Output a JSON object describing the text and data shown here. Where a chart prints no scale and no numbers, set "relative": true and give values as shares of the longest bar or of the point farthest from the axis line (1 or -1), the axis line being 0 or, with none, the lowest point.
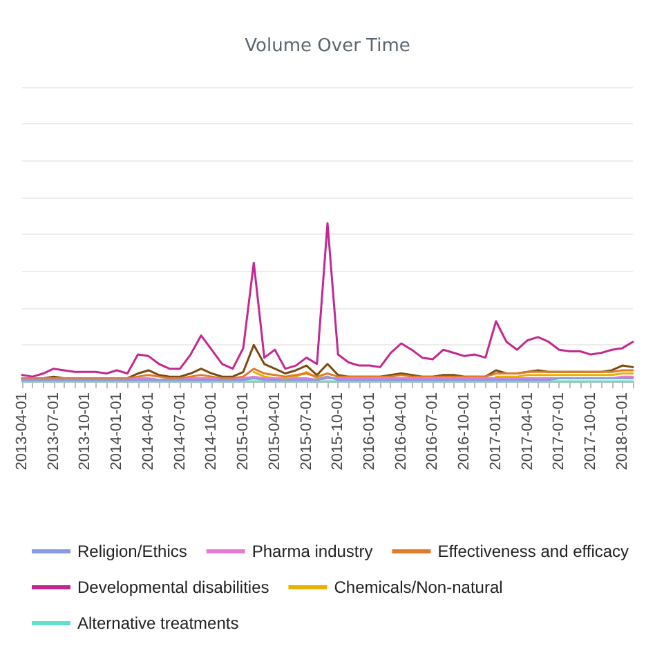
{
  "chart_data": {
    "type": "line",
    "title": "Volume Over Time",
    "relative": true,
    "grid": "y",
    "legend": "bottom",
    "marker": "none",
    "line_style": "solid",
    "categories": [
      "2013-04-01",
      null,
      null,
      "2013-07-01",
      null,
      null,
      "2013-10-01",
      null,
      null,
      "2014-01-01",
      null,
      null,
      "2014-04-01",
      null,
      null,
      "2014-07-01",
      null,
      null,
      "2014-10-01",
      null,
      null,
      "2015-01-01",
      null,
      null,
      "2015-04-01",
      null,
      null,
      "2015-07-01",
      null,
      null,
      "2015-10-01",
      null,
      null,
      "2016-01-01",
      null,
      null,
      "2016-04-01",
      null,
      null,
      "2016-07-01",
      null,
      null,
      "2016-10-01",
      null,
      null,
      "2017-01-01",
      null,
      null,
      "2017-04-01",
      null,
      null,
      "2017-07-01",
      null,
      null,
      "2017-10-01",
      null,
      null,
      "2018-01-01",
      null
    ],
    "series": [
      {
        "name": "Religion/Ethics",
        "color": "#8a9ae0",
        "values": [
          0.01,
          0.01,
          0.01,
          0.01,
          0.01,
          0.01,
          0.01,
          0.01,
          0.01,
          0.01,
          0.01,
          0.01,
          0.01,
          0.01,
          0.01,
          0.01,
          0.01,
          0.01,
          0.01,
          0.01,
          0.01,
          0.01,
          0.02,
          0.01,
          0.01,
          0.01,
          0.01,
          0.01,
          0.01,
          0.03,
          0.01,
          0.01,
          0.01,
          0.01,
          0.01,
          0.01,
          0.01,
          0.01,
          0.01,
          0.01,
          0.01,
          0.01,
          0.01,
          0.01,
          0.01,
          0.01,
          0.01,
          0.01,
          0.01,
          0.01,
          0.01,
          0.02,
          0.02,
          0.02,
          0.02,
          0.02,
          0.02,
          0.02,
          0.02
        ]
      },
      {
        "name": "Pharma industry",
        "color": "#e87ad6",
        "values": [
          0.01,
          0.01,
          0.01,
          0.01,
          0.01,
          0.01,
          0.01,
          0.01,
          0.01,
          0.01,
          0.01,
          0.02,
          0.02,
          0.01,
          0.01,
          0.01,
          0.02,
          0.02,
          0.02,
          0.01,
          0.01,
          0.02,
          0.03,
          0.02,
          0.02,
          0.01,
          0.02,
          0.02,
          0.01,
          0.02,
          0.02,
          0.02,
          0.02,
          0.02,
          0.02,
          0.02,
          0.02,
          0.02,
          0.02,
          0.02,
          0.02,
          0.02,
          0.02,
          0.02,
          0.02,
          0.02,
          0.02,
          0.02,
          0.02,
          0.02,
          0.02,
          0.02,
          0.02,
          0.02,
          0.02,
          0.02,
          0.02,
          0.03,
          0.03
        ]
      },
      {
        "name": "Effectiveness and efficacy",
        "color": "#e07b2a",
        "values": [
          0.02,
          0.02,
          0.02,
          0.02,
          0.02,
          0.02,
          0.02,
          0.02,
          0.02,
          0.02,
          0.02,
          0.03,
          0.04,
          0.03,
          0.02,
          0.02,
          0.03,
          0.04,
          0.03,
          0.02,
          0.02,
          0.03,
          0.08,
          0.05,
          0.04,
          0.03,
          0.04,
          0.05,
          0.03,
          0.05,
          0.03,
          0.03,
          0.03,
          0.03,
          0.03,
          0.03,
          0.04,
          0.03,
          0.03,
          0.03,
          0.03,
          0.03,
          0.03,
          0.03,
          0.03,
          0.05,
          0.05,
          0.05,
          0.06,
          0.06,
          0.06,
          0.06,
          0.06,
          0.06,
          0.06,
          0.06,
          0.06,
          0.07,
          0.07
        ]
      },
      {
        "name": "Developmental disabilities",
        "color": "#c4288f",
        "values": [
          0.04,
          0.03,
          0.05,
          0.08,
          0.07,
          0.06,
          0.06,
          0.06,
          0.05,
          0.07,
          0.05,
          0.17,
          0.16,
          0.11,
          0.08,
          0.08,
          0.17,
          0.29,
          0.2,
          0.11,
          0.08,
          0.21,
          0.75,
          0.15,
          0.2,
          0.08,
          0.1,
          0.15,
          0.11,
          1.0,
          0.17,
          0.12,
          0.1,
          0.1,
          0.09,
          0.18,
          0.24,
          0.2,
          0.15,
          0.14,
          0.2,
          0.18,
          0.16,
          0.17,
          0.15,
          0.38,
          0.25,
          0.2,
          0.26,
          0.28,
          0.25,
          0.2,
          0.19,
          0.19,
          0.17,
          0.18,
          0.2,
          0.21,
          0.25
        ]
      },
      {
        "color": "#7a4a10",
        "values": [
          0.02,
          0.02,
          0.02,
          0.03,
          0.02,
          0.02,
          0.02,
          0.02,
          0.02,
          0.02,
          0.02,
          0.05,
          0.07,
          0.04,
          0.03,
          0.03,
          0.05,
          0.08,
          0.05,
          0.03,
          0.03,
          0.06,
          0.23,
          0.11,
          0.08,
          0.05,
          0.07,
          0.1,
          0.04,
          0.11,
          0.04,
          0.03,
          0.03,
          0.03,
          0.03,
          0.04,
          0.05,
          0.04,
          0.03,
          0.03,
          0.04,
          0.04,
          0.03,
          0.03,
          0.03,
          0.07,
          0.05,
          0.05,
          0.06,
          0.07,
          0.06,
          0.06,
          0.06,
          0.06,
          0.06,
          0.06,
          0.07,
          0.1,
          0.09
        ]
      },
      {
        "name": "Chemicals/Non-natural",
        "color": "#e6b400",
        "values": [
          null,
          null,
          null,
          null,
          null,
          null,
          null,
          null,
          null,
          null,
          null,
          null,
          null,
          null,
          null,
          null,
          null,
          null,
          null,
          null,
          null,
          null,
          0.06,
          0.03,
          0.02,
          0.02,
          0.03,
          0.06,
          0.02,
          0.03,
          null,
          null,
          null,
          null,
          null,
          null,
          null,
          null,
          null,
          null,
          null,
          null,
          null,
          null,
          null,
          0.03,
          0.03,
          0.03,
          0.04,
          0.04,
          0.04,
          0.04,
          0.04,
          0.04,
          0.04,
          0.04,
          0.04,
          0.05,
          0.05
        ]
      },
      {
        "name": "Alternative treatments",
        "color": "#5fe0c8",
        "values": [
          0,
          0,
          0,
          0,
          0,
          0,
          0,
          0,
          0,
          0,
          0,
          0,
          0,
          0,
          0,
          0,
          0,
          0,
          0,
          0,
          0,
          0,
          0,
          0,
          0,
          0,
          0,
          0,
          0,
          0,
          0,
          0,
          0,
          0,
          0,
          0,
          0,
          0,
          0,
          0,
          0,
          0,
          0,
          0,
          0,
          0,
          0,
          0,
          0,
          0,
          0,
          0,
          0,
          0,
          0,
          0,
          0,
          0,
          0
        ]
      }
    ]
  }
}
